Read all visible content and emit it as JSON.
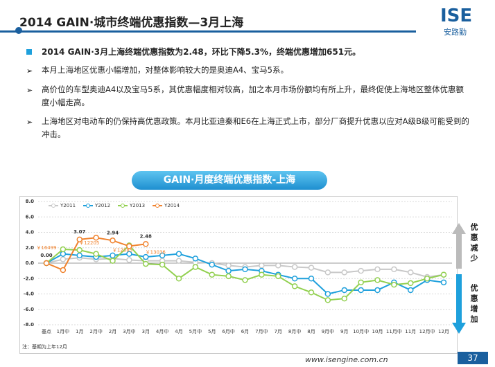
{
  "header": {
    "title": "2014 GAIN·城市终端优惠指数—3月上海",
    "logo": "ISE",
    "logo_sub": "安路勤"
  },
  "bullets": {
    "lead": "2014 GAIN·3月上海终端优惠指数为2.48，环比下降5.3%，终端优惠增加651元。",
    "items": [
      "本月上海地区优惠小幅增加，对整体影响较大的是奥迪A4、宝马5系。",
      "高价位的车型奥迪A4以及宝马5系，其优惠幅度相对较高，加之本月市场份额均有所上升，最终促使上海地区整体优惠额度小幅走高。",
      "上海地区对电动车的仍保持高优惠政策。本月比亚迪秦和E6在上海正式上市，部分厂商提升优惠以应对A级B级可能受到的冲击。"
    ]
  },
  "chart_data": {
    "type": "line",
    "title": "GAIN·月度终端优惠指数-上海",
    "categories": [
      "基点",
      "1月中",
      "1月",
      "2月中",
      "2月",
      "3月中",
      "3月",
      "4月中",
      "4月",
      "5月中",
      "5月",
      "6月中",
      "6月",
      "7月中",
      "7月",
      "8月中",
      "8月",
      "9月中",
      "9月",
      "10月中",
      "10月",
      "11月中",
      "11月",
      "12月中",
      "12月"
    ],
    "series": [
      {
        "name": "Y2011",
        "color": "#c8c8c8",
        "values": [
          0,
          0.5,
          0.7,
          0.5,
          0.6,
          0.4,
          0.3,
          0.3,
          0.3,
          0.1,
          0,
          -0.3,
          -0.5,
          -0.3,
          -0.3,
          -0.5,
          -0.6,
          -1.2,
          -1.2,
          -1.0,
          -0.8,
          -0.8,
          -1.2,
          -1.8,
          -1.5
        ]
      },
      {
        "name": "Y2012",
        "color": "#1ea0dc",
        "values": [
          0,
          1.2,
          1.0,
          0.8,
          1.0,
          1.2,
          0.8,
          1.0,
          1.2,
          0.6,
          -0.2,
          -1.0,
          -0.8,
          -1.0,
          -1.5,
          -2.0,
          -2.0,
          -4.0,
          -3.5,
          -3.5,
          -3.5,
          -2.5,
          -3.5,
          -2.2,
          -2.5
        ]
      },
      {
        "name": "Y2013",
        "color": "#92d050",
        "values": [
          0,
          1.8,
          1.7,
          1.2,
          0.3,
          2.3,
          -0.1,
          -0.2,
          -2.0,
          -0.5,
          -1.5,
          -1.7,
          -2.2,
          -1.5,
          -1.7,
          -3.0,
          -3.8,
          -4.8,
          -4.6,
          -2.5,
          -2.2,
          -2.8,
          -2.6,
          -2.0,
          -1.5
        ]
      },
      {
        "name": "Y2014",
        "color": "#f0822d",
        "values": [
          0,
          -0.9,
          3.07,
          3.3,
          2.94,
          2.2,
          2.48,
          null,
          null,
          null,
          null,
          null,
          null,
          null,
          null,
          null,
          null,
          null,
          null,
          null,
          null,
          null,
          null,
          null,
          null
        ],
        "value_labels": [
          "0.00",
          null,
          "3.07",
          null,
          "2.94",
          null,
          "2.48",
          null,
          null,
          null,
          null,
          null,
          null,
          null,
          null,
          null,
          null,
          null,
          null,
          null,
          null,
          null,
          null,
          null,
          null
        ]
      }
    ],
    "price_labels": [
      {
        "index": 0,
        "label": "￥16499"
      },
      {
        "index": 2,
        "label": "￥12205"
      },
      {
        "index": 4,
        "label": "￥12385"
      },
      {
        "index": 6,
        "label": "￥13036"
      }
    ],
    "ylim": [
      -8,
      8
    ],
    "yticks": [
      {
        "value": -8,
        "label": "-8.0"
      },
      {
        "value": -6,
        "label": "-6.0"
      },
      {
        "value": -4,
        "label": "-4.0"
      },
      {
        "value": -2,
        "label": "-2.0"
      },
      {
        "value": 0,
        "label": "0.0"
      },
      {
        "value": 2,
        "label": "2.0"
      },
      {
        "value": 4,
        "label": "4.0"
      },
      {
        "value": 6,
        "label": "6.0"
      },
      {
        "value": 8,
        "label": "8.0"
      }
    ],
    "grid": true,
    "legend": "top-left",
    "side_up": "优惠减少",
    "side_down": "优惠增加",
    "note": "注：基期为上年12月"
  },
  "footer": {
    "url": "www.isengine.com.cn",
    "page": "37"
  }
}
